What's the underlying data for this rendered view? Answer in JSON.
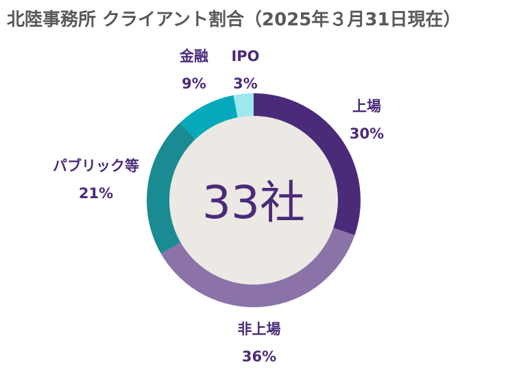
{
  "title": "北陸事務所 クライアント割合（2025年３月31日現在）",
  "center_label": "33社",
  "chart_data": {
    "type": "pie",
    "title": "北陸事務所 クライアント割合（2025年３月31日現在）",
    "center_label": "33社",
    "categories": [
      "上場",
      "非上場",
      "パブリック等",
      "金融",
      "IPO"
    ],
    "values": [
      30,
      36,
      21,
      9,
      3
    ],
    "value_labels": [
      "30%",
      "36%",
      "21%",
      "9%",
      "3%"
    ],
    "colors": [
      "#4b2a7a",
      "#8b73a8",
      "#1a8a93",
      "#05a9bb",
      "#9ee8ef"
    ],
    "center_fill": "#ece8e3",
    "legend": "none"
  }
}
